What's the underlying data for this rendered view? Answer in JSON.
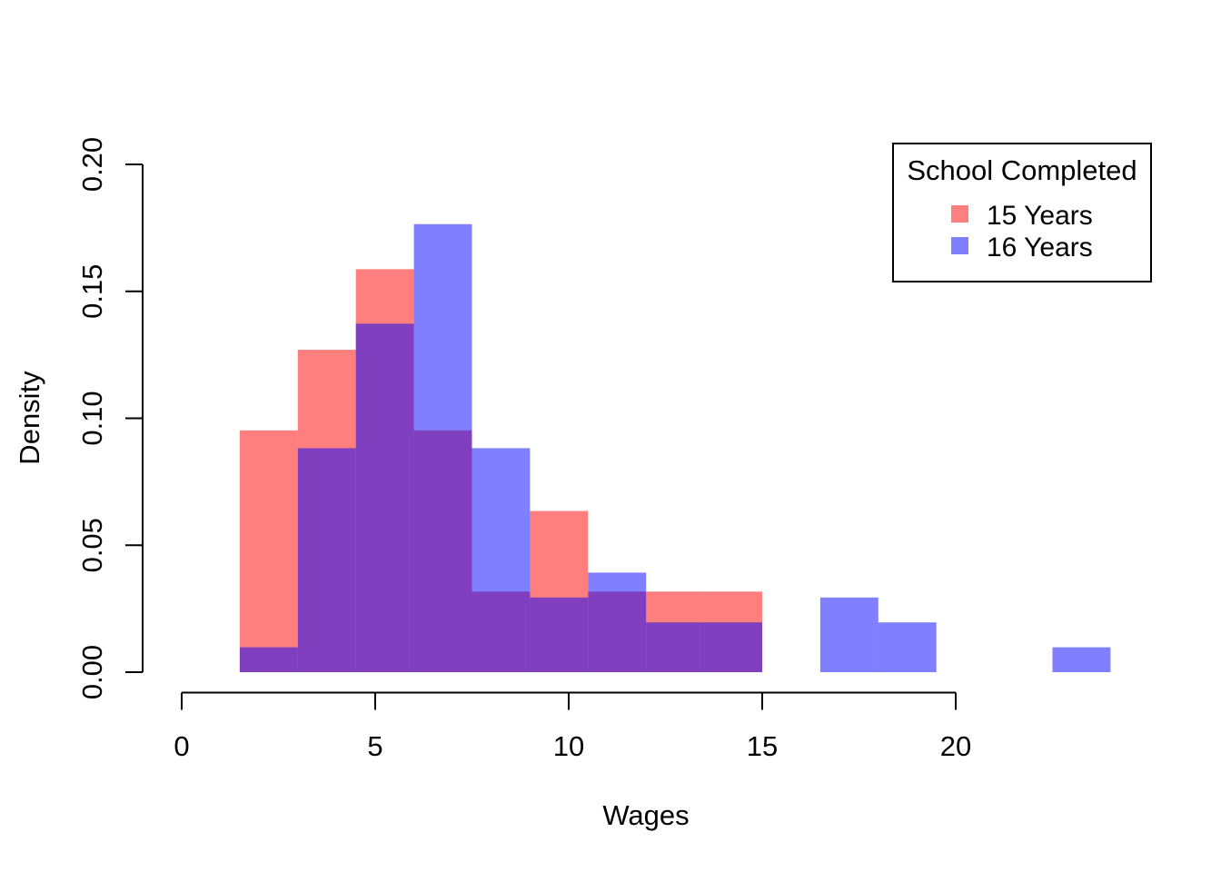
{
  "figure": {
    "background": "#FFFFFF"
  },
  "chart_data": {
    "type": "bar",
    "subtype": "overlapping-density-histograms",
    "title": "",
    "xlabel": "Wages",
    "ylabel": "Density",
    "x_ticks": [
      0,
      5,
      10,
      15,
      20
    ],
    "x_tick_labels": [
      "0",
      "5",
      "10",
      "15",
      "20"
    ],
    "y_ticks": [
      0.0,
      0.05,
      0.1,
      0.15,
      0.2
    ],
    "y_tick_labels": [
      "0.00",
      "0.05",
      "0.10",
      "0.15",
      "0.20"
    ],
    "xlim": [
      0,
      24
    ],
    "ylim": [
      0,
      0.2
    ],
    "bin_width": 1.5,
    "grid": false,
    "axis_color": "#000000",
    "overlap_color_appearance": "#7F3FBF",
    "legend": {
      "title": "School Completed",
      "position": "top-right",
      "entries": [
        {
          "label": "15 Years",
          "swatch_color": "#FF7F7F"
        },
        {
          "label": "16 Years",
          "swatch_color": "#7F7FFF"
        }
      ]
    },
    "series": [
      {
        "name": "15 Years",
        "fill": "rgba(255,0,0,0.5)",
        "bins": [
          {
            "x0": 1.5,
            "x1": 3.0,
            "density": 0.095238
          },
          {
            "x0": 3.0,
            "x1": 4.5,
            "density": 0.126984
          },
          {
            "x0": 4.5,
            "x1": 6.0,
            "density": 0.15873
          },
          {
            "x0": 6.0,
            "x1": 7.5,
            "density": 0.095238
          },
          {
            "x0": 7.5,
            "x1": 9.0,
            "density": 0.031746
          },
          {
            "x0": 9.0,
            "x1": 10.5,
            "density": 0.063492
          },
          {
            "x0": 10.5,
            "x1": 12.0,
            "density": 0.031746
          },
          {
            "x0": 12.0,
            "x1": 13.5,
            "density": 0.031746
          },
          {
            "x0": 13.5,
            "x1": 15.0,
            "density": 0.031746
          }
        ]
      },
      {
        "name": "16 Years",
        "fill": "rgba(0,0,255,0.5)",
        "bins": [
          {
            "x0": 1.5,
            "x1": 3.0,
            "density": 0.009804
          },
          {
            "x0": 3.0,
            "x1": 4.5,
            "density": 0.088235
          },
          {
            "x0": 4.5,
            "x1": 6.0,
            "density": 0.137255
          },
          {
            "x0": 6.0,
            "x1": 7.5,
            "density": 0.176471
          },
          {
            "x0": 7.5,
            "x1": 9.0,
            "density": 0.088235
          },
          {
            "x0": 9.0,
            "x1": 10.5,
            "density": 0.029412
          },
          {
            "x0": 10.5,
            "x1": 12.0,
            "density": 0.039216
          },
          {
            "x0": 12.0,
            "x1": 13.5,
            "density": 0.019608
          },
          {
            "x0": 13.5,
            "x1": 15.0,
            "density": 0.019608
          },
          {
            "x0": 16.5,
            "x1": 18.0,
            "density": 0.029412
          },
          {
            "x0": 18.0,
            "x1": 19.5,
            "density": 0.019608
          },
          {
            "x0": 22.5,
            "x1": 24.0,
            "density": 0.009804
          }
        ]
      }
    ]
  }
}
